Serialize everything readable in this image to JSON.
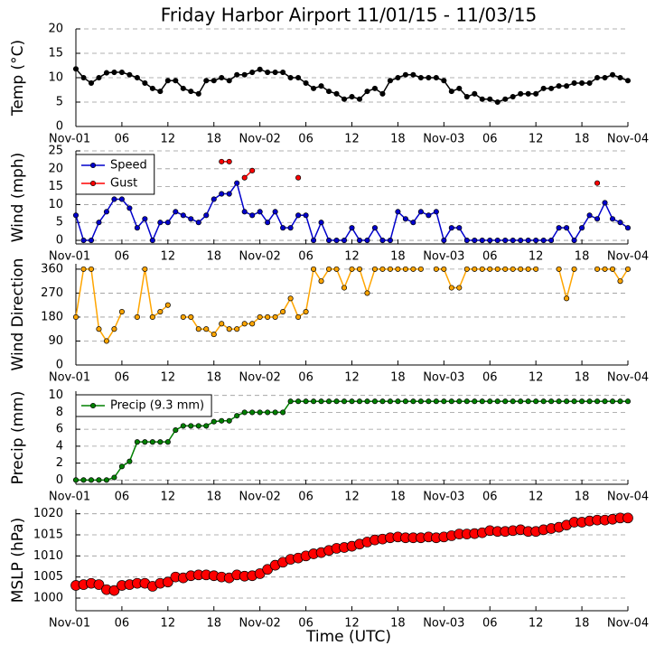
{
  "chart_data": [
    {
      "type": "line",
      "title": "Friday Harbor Airport 11/01/15 - 11/03/15",
      "ylabel": "Temp (°C)",
      "xlim": [
        0,
        72
      ],
      "xticks": [
        {
          "value": 0,
          "label": "Nov-01"
        },
        {
          "value": 6,
          "label": "06"
        },
        {
          "value": 12,
          "label": "12"
        },
        {
          "value": 18,
          "label": "18"
        },
        {
          "value": 24,
          "label": "Nov-02"
        },
        {
          "value": 30,
          "label": "06"
        },
        {
          "value": 36,
          "label": "12"
        },
        {
          "value": 42,
          "label": "18"
        },
        {
          "value": 48,
          "label": "Nov-03"
        },
        {
          "value": 54,
          "label": "06"
        },
        {
          "value": 60,
          "label": "12"
        },
        {
          "value": 66,
          "label": "18"
        },
        {
          "value": 72,
          "label": "Nov-04"
        }
      ],
      "ylim": [
        0,
        20
      ],
      "yticks": [
        0,
        5,
        10,
        15,
        20
      ],
      "grid": true,
      "x": [
        0,
        1,
        2,
        3,
        4,
        5,
        6,
        7,
        8,
        9,
        10,
        11,
        12,
        13,
        14,
        15,
        16,
        17,
        18,
        19,
        20,
        21,
        22,
        23,
        24,
        25,
        26,
        27,
        28,
        29,
        30,
        31,
        32,
        33,
        34,
        35,
        36,
        37,
        38,
        39,
        40,
        41,
        42,
        43,
        44,
        45,
        46,
        47,
        48,
        49,
        50,
        51,
        52,
        53,
        54,
        55,
        56,
        57,
        58,
        59,
        60,
        61,
        62,
        63,
        64,
        65,
        66,
        67,
        68,
        69,
        70,
        71,
        72
      ],
      "series": [
        {
          "color": "#000000",
          "values": [
            11.8,
            10,
            8.9,
            10,
            11,
            11.1,
            11.1,
            10.6,
            10,
            8.9,
            7.8,
            7.2,
            9.4,
            9.4,
            7.8,
            7.2,
            6.7,
            9.4,
            9.4,
            10,
            9.4,
            10.6,
            10.6,
            11.1,
            11.7,
            11.1,
            11.1,
            11.1,
            10,
            10,
            8.9,
            7.8,
            8.3,
            7.2,
            6.7,
            5.6,
            6.1,
            5.6,
            7.2,
            7.8,
            6.7,
            9.4,
            10,
            10.6,
            10.6,
            10,
            10,
            10,
            9.4,
            7.2,
            7.8,
            6.1,
            6.7,
            5.6,
            5.6,
            5,
            5.6,
            6.1,
            6.7,
            6.7,
            6.7,
            7.8,
            7.8,
            8.3,
            8.3,
            8.9,
            8.9,
            8.9,
            10,
            10,
            10.6,
            10,
            9.4
          ]
        }
      ]
    },
    {
      "type": "line",
      "ylabel": "Wind (mph)",
      "legend": "upper left",
      "xlim": [
        0,
        72
      ],
      "xticks": [
        {
          "value": 0,
          "label": "Nov-01"
        },
        {
          "value": 6,
          "label": "06"
        },
        {
          "value": 12,
          "label": "12"
        },
        {
          "value": 18,
          "label": "18"
        },
        {
          "value": 24,
          "label": "Nov-02"
        },
        {
          "value": 30,
          "label": "06"
        },
        {
          "value": 36,
          "label": "12"
        },
        {
          "value": 42,
          "label": "18"
        },
        {
          "value": 48,
          "label": "Nov-03"
        },
        {
          "value": 54,
          "label": "06"
        },
        {
          "value": 60,
          "label": "12"
        },
        {
          "value": 66,
          "label": "18"
        },
        {
          "value": 72,
          "label": "Nov-04"
        }
      ],
      "ylim": [
        -1,
        25
      ],
      "yticks": [
        0,
        5,
        10,
        15,
        20,
        25
      ],
      "grid": true,
      "x": [
        0,
        1,
        2,
        3,
        4,
        5,
        6,
        7,
        8,
        9,
        10,
        11,
        12,
        13,
        14,
        15,
        16,
        17,
        18,
        19,
        20,
        21,
        22,
        23,
        24,
        25,
        26,
        27,
        28,
        29,
        30,
        31,
        32,
        33,
        34,
        35,
        36,
        37,
        38,
        39,
        40,
        41,
        42,
        43,
        44,
        45,
        46,
        47,
        48,
        49,
        50,
        51,
        52,
        53,
        54,
        55,
        56,
        57,
        58,
        59,
        60,
        61,
        62,
        63,
        64,
        65,
        66,
        67,
        68,
        69,
        70,
        71,
        72
      ],
      "series": [
        {
          "name": "Speed",
          "color": "#0000cc",
          "values": [
            7,
            0,
            0,
            5,
            8,
            11.5,
            11.5,
            9,
            3.5,
            6,
            0,
            5,
            5,
            8,
            7,
            6,
            5,
            7,
            11.5,
            13,
            13,
            16,
            8,
            7,
            8,
            5,
            8,
            3.5,
            3.5,
            7,
            7,
            0,
            5,
            0,
            0,
            0,
            3.5,
            0,
            0,
            3.5,
            0,
            0,
            8,
            6,
            5,
            8,
            7,
            8,
            0,
            3.5,
            3.5,
            0,
            0,
            0,
            0,
            0,
            0,
            0,
            0,
            0,
            0,
            0,
            0,
            3.5,
            3.5,
            0,
            3.5,
            7,
            6,
            10.5,
            6,
            5,
            3.5
          ]
        },
        {
          "name": "Gust",
          "color": "#ff0000",
          "values": [
            null,
            null,
            null,
            null,
            null,
            null,
            null,
            null,
            null,
            null,
            null,
            null,
            null,
            null,
            null,
            null,
            null,
            null,
            null,
            22,
            22,
            null,
            17.5,
            19.5,
            null,
            null,
            null,
            null,
            null,
            17.5,
            null,
            null,
            null,
            null,
            null,
            null,
            null,
            null,
            null,
            null,
            null,
            null,
            null,
            null,
            null,
            null,
            null,
            null,
            null,
            null,
            null,
            null,
            null,
            null,
            null,
            null,
            null,
            null,
            null,
            null,
            null,
            null,
            null,
            null,
            null,
            null,
            null,
            null,
            16,
            null,
            null,
            null,
            null
          ]
        }
      ]
    },
    {
      "type": "line",
      "ylabel": "Wind Direction",
      "xlim": [
        0,
        72
      ],
      "xticks": [
        {
          "value": 0,
          "label": "Nov-01"
        },
        {
          "value": 6,
          "label": "06"
        },
        {
          "value": 12,
          "label": "12"
        },
        {
          "value": 18,
          "label": "18"
        },
        {
          "value": 24,
          "label": "Nov-02"
        },
        {
          "value": 30,
          "label": "06"
        },
        {
          "value": 36,
          "label": "12"
        },
        {
          "value": 42,
          "label": "18"
        },
        {
          "value": 48,
          "label": "Nov-03"
        },
        {
          "value": 54,
          "label": "06"
        },
        {
          "value": 60,
          "label": "12"
        },
        {
          "value": 66,
          "label": "18"
        },
        {
          "value": 72,
          "label": "Nov-04"
        }
      ],
      "ylim": [
        0,
        380
      ],
      "yticks": [
        0,
        90,
        180,
        270,
        360
      ],
      "grid": true,
      "x": [
        0,
        1,
        2,
        3,
        4,
        5,
        6,
        7,
        8,
        9,
        10,
        11,
        12,
        13,
        14,
        15,
        16,
        17,
        18,
        19,
        20,
        21,
        22,
        23,
        24,
        25,
        26,
        27,
        28,
        29,
        30,
        31,
        32,
        33,
        34,
        35,
        36,
        37,
        38,
        39,
        40,
        41,
        42,
        43,
        44,
        45,
        46,
        47,
        48,
        49,
        50,
        51,
        52,
        53,
        54,
        55,
        56,
        57,
        58,
        59,
        60,
        61,
        62,
        63,
        64,
        65,
        66,
        67,
        68,
        69,
        70,
        71,
        72
      ],
      "series": [
        {
          "color": "#ffa500",
          "values": [
            180,
            360,
            360,
            135,
            90,
            135,
            200,
            null,
            180,
            360,
            180,
            200,
            225,
            null,
            180,
            180,
            135,
            135,
            115,
            155,
            135,
            135,
            155,
            155,
            180,
            180,
            180,
            200,
            250,
            180,
            200,
            360,
            315,
            360,
            360,
            290,
            360,
            360,
            270,
            360,
            360,
            360,
            360,
            360,
            360,
            360,
            null,
            360,
            360,
            290,
            290,
            360,
            360,
            360,
            360,
            360,
            360,
            360,
            360,
            360,
            360,
            null,
            null,
            360,
            250,
            360,
            null,
            null,
            360,
            360,
            360,
            315,
            360
          ]
        }
      ]
    },
    {
      "type": "line",
      "ylabel": "Precip (mm)",
      "legend": "upper left",
      "xlim": [
        0,
        72
      ],
      "xticks": [
        {
          "value": 0,
          "label": "Nov-01"
        },
        {
          "value": 6,
          "label": "06"
        },
        {
          "value": 12,
          "label": "12"
        },
        {
          "value": 18,
          "label": "18"
        },
        {
          "value": 24,
          "label": "Nov-02"
        },
        {
          "value": 30,
          "label": "06"
        },
        {
          "value": 36,
          "label": "12"
        },
        {
          "value": 42,
          "label": "18"
        },
        {
          "value": 48,
          "label": "Nov-03"
        },
        {
          "value": 54,
          "label": "06"
        },
        {
          "value": 60,
          "label": "12"
        },
        {
          "value": 66,
          "label": "18"
        },
        {
          "value": 72,
          "label": "Nov-04"
        }
      ],
      "ylim": [
        -0.5,
        10.5
      ],
      "yticks": [
        0,
        2,
        4,
        6,
        8,
        10
      ],
      "grid": true,
      "x": [
        0,
        1,
        2,
        3,
        4,
        5,
        6,
        7,
        8,
        9,
        10,
        11,
        12,
        13,
        14,
        15,
        16,
        17,
        18,
        19,
        20,
        21,
        22,
        23,
        24,
        25,
        26,
        27,
        28,
        29,
        30,
        31,
        32,
        33,
        34,
        35,
        36,
        37,
        38,
        39,
        40,
        41,
        42,
        43,
        44,
        45,
        46,
        47,
        48,
        49,
        50,
        51,
        52,
        53,
        54,
        55,
        56,
        57,
        58,
        59,
        60,
        61,
        62,
        63,
        64,
        65,
        66,
        67,
        68,
        69,
        70,
        71,
        72
      ],
      "series": [
        {
          "name": "Precip (9.3 mm)",
          "color": "#008000",
          "values": [
            0,
            0,
            0,
            0,
            0,
            0.3,
            1.6,
            2.2,
            4.5,
            4.5,
            4.5,
            4.5,
            4.5,
            5.9,
            6.4,
            6.4,
            6.4,
            6.4,
            6.9,
            7,
            7,
            7.6,
            8,
            8,
            8,
            8,
            8,
            8,
            9.3,
            9.3,
            9.3,
            9.3,
            9.3,
            9.3,
            9.3,
            9.3,
            9.3,
            9.3,
            9.3,
            9.3,
            9.3,
            9.3,
            9.3,
            9.3,
            9.3,
            9.3,
            9.3,
            9.3,
            9.3,
            9.3,
            9.3,
            9.3,
            9.3,
            9.3,
            9.3,
            9.3,
            9.3,
            9.3,
            9.3,
            9.3,
            9.3,
            9.3,
            9.3,
            9.3,
            9.3,
            9.3,
            9.3,
            9.3,
            9.3,
            9.3,
            9.3,
            9.3,
            9.3
          ]
        }
      ]
    },
    {
      "type": "scatter",
      "ylabel": "MSLP (hPa)",
      "xlabel": "Time (UTC)",
      "xlim": [
        0,
        72
      ],
      "xticks": [
        {
          "value": 0,
          "label": "Nov-01"
        },
        {
          "value": 6,
          "label": "06"
        },
        {
          "value": 12,
          "label": "12"
        },
        {
          "value": 18,
          "label": "18"
        },
        {
          "value": 24,
          "label": "Nov-02"
        },
        {
          "value": 30,
          "label": "06"
        },
        {
          "value": 36,
          "label": "12"
        },
        {
          "value": 42,
          "label": "18"
        },
        {
          "value": 48,
          "label": "Nov-03"
        },
        {
          "value": 54,
          "label": "06"
        },
        {
          "value": 60,
          "label": "12"
        },
        {
          "value": 66,
          "label": "18"
        },
        {
          "value": 72,
          "label": "Nov-04"
        }
      ],
      "ylim": [
        997,
        1021
      ],
      "yticks": [
        1000,
        1005,
        1010,
        1015,
        1020
      ],
      "grid": true,
      "x": [
        0,
        1,
        2,
        3,
        4,
        5,
        6,
        7,
        8,
        9,
        10,
        11,
        12,
        13,
        14,
        15,
        16,
        17,
        18,
        19,
        20,
        21,
        22,
        23,
        24,
        25,
        26,
        27,
        28,
        29,
        30,
        31,
        32,
        33,
        34,
        35,
        36,
        37,
        38,
        39,
        40,
        41,
        42,
        43,
        44,
        45,
        46,
        47,
        48,
        49,
        50,
        51,
        52,
        53,
        54,
        55,
        56,
        57,
        58,
        59,
        60,
        61,
        62,
        63,
        64,
        65,
        66,
        67,
        68,
        69,
        70,
        71,
        72
      ],
      "series": [
        {
          "color": "#ff0000",
          "values": [
            1003,
            1003.2,
            1003.5,
            1003.2,
            1002,
            1001.8,
            1003,
            1003.2,
            1003.5,
            1003.5,
            1002.8,
            1003.5,
            1003.8,
            1005,
            1004.8,
            1005.3,
            1005.5,
            1005.5,
            1005.3,
            1005,
            1004.8,
            1005.5,
            1005.2,
            1005.3,
            1005.8,
            1006.8,
            1007.8,
            1008.5,
            1009.2,
            1009.5,
            1010,
            1010.5,
            1010.8,
            1011.3,
            1011.8,
            1012,
            1012.3,
            1012.8,
            1013.3,
            1013.8,
            1014,
            1014.3,
            1014.5,
            1014.3,
            1014.3,
            1014.3,
            1014.5,
            1014.3,
            1014.5,
            1014.8,
            1015.2,
            1015.2,
            1015.3,
            1015.5,
            1016,
            1015.8,
            1015.8,
            1016,
            1016.2,
            1015.8,
            1015.8,
            1016.2,
            1016.5,
            1016.8,
            1017.3,
            1018,
            1018,
            1018.3,
            1018.5,
            1018.5,
            1018.7,
            1019,
            1019
          ]
        }
      ]
    }
  ]
}
